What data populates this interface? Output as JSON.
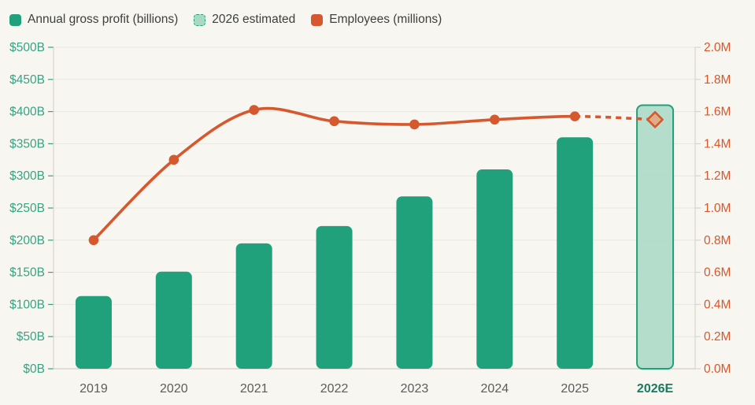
{
  "legend": {
    "items": [
      {
        "label": "Annual gross profit (billions)",
        "swatch": "solid-green",
        "color": "#21A17B"
      },
      {
        "label": "2026 estimated",
        "swatch": "estimated",
        "color": "#A9D8C5",
        "border_color": "#21A17B"
      },
      {
        "label": "Employees (millions)",
        "swatch": "solid-orange",
        "color": "#D6582F"
      }
    ]
  },
  "colors": {
    "background": "#F8F6F0",
    "bar_green": "#21A17B",
    "bar_estimated_fill": "#A9D8C5",
    "line_orange": "#D6582F",
    "left_axis_text": "#36A383",
    "right_axis_text": "#D6582F",
    "x_axis_text": "#595D5E",
    "x_axis_estimated_text": "#187A60",
    "gridline": "#EAE7E0",
    "axis_line": "#D9D4CC",
    "diamond_fill": "#DFAE87"
  },
  "chart_data": {
    "type": "bar+line combo",
    "categories": [
      "2019",
      "2020",
      "2021",
      "2022",
      "2023",
      "2024",
      "2025",
      "2026E"
    ],
    "series": [
      {
        "name": "Annual gross profit (billions)",
        "type": "bar",
        "axis": "left",
        "unit": "USD billions",
        "values": [
          113,
          151,
          195,
          222,
          268,
          310,
          360,
          410
        ],
        "estimated": [
          false,
          false,
          false,
          false,
          false,
          false,
          false,
          true
        ]
      },
      {
        "name": "Employees (millions)",
        "type": "line",
        "axis": "right",
        "unit": "millions of employees",
        "values": [
          0.8,
          1.3,
          1.61,
          1.54,
          1.52,
          1.55,
          1.57,
          1.55
        ],
        "estimated": [
          false,
          false,
          false,
          false,
          false,
          false,
          false,
          true
        ]
      }
    ],
    "left_axis": {
      "tick_labels": [
        "$0B",
        "$50B",
        "$100B",
        "$150B",
        "$200B",
        "$250B",
        "$300B",
        "$350B",
        "$400B",
        "$450B",
        "$500B"
      ],
      "range": [
        0,
        500
      ]
    },
    "right_axis": {
      "tick_labels": [
        "0.0M",
        "0.2M",
        "0.4M",
        "0.6M",
        "0.8M",
        "1.0M",
        "1.2M",
        "1.4M",
        "1.6M",
        "1.8M",
        "2.0M"
      ],
      "range": [
        0,
        2
      ]
    },
    "grid": true,
    "legend_position": "top-left",
    "notes": "2026E bar is a lighter estimated bar with solid green border; employees line is dashed from 2025 to 2026E ending in a diamond marker"
  }
}
